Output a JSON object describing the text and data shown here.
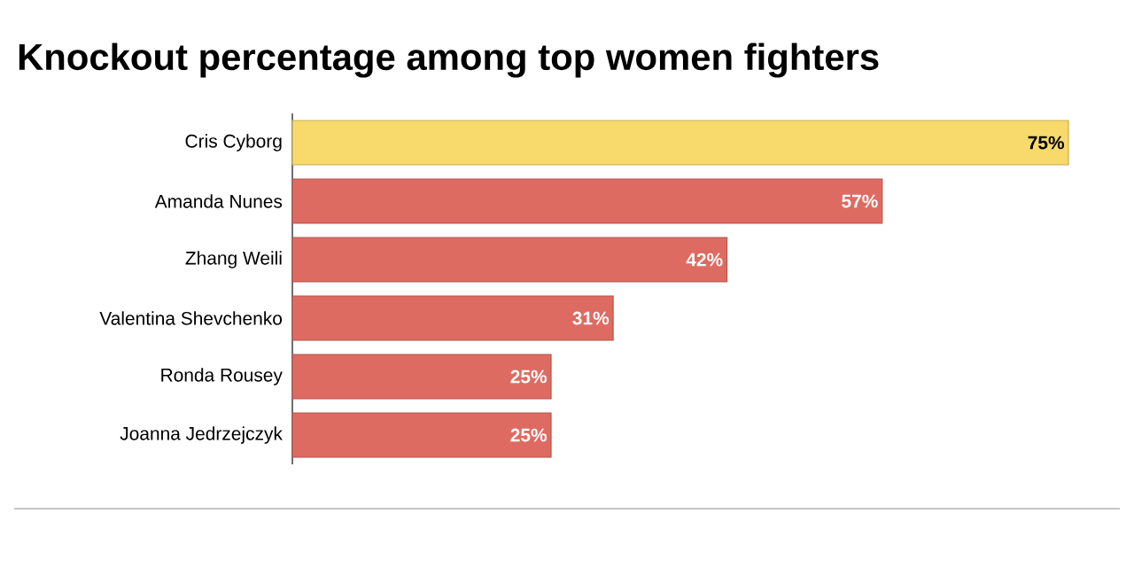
{
  "chart_data": {
    "type": "bar",
    "orientation": "horizontal",
    "title": "Knockout percentage among top women fighters",
    "categories": [
      "Cris Cyborg",
      "Amanda Nunes",
      "Zhang Weili",
      "Valentina Shevchenko",
      "Ronda Rousey",
      "Joanna Jedrzejczyk"
    ],
    "values": [
      75,
      57,
      42,
      31,
      25,
      25
    ],
    "value_labels": [
      "75%",
      "57%",
      "42%",
      "31%",
      "25%",
      "25%"
    ],
    "colors": [
      "#f8d96c",
      "#de6b62",
      "#de6b62",
      "#de6b62",
      "#de6b62",
      "#de6b62"
    ],
    "xlim": [
      0,
      75
    ]
  }
}
